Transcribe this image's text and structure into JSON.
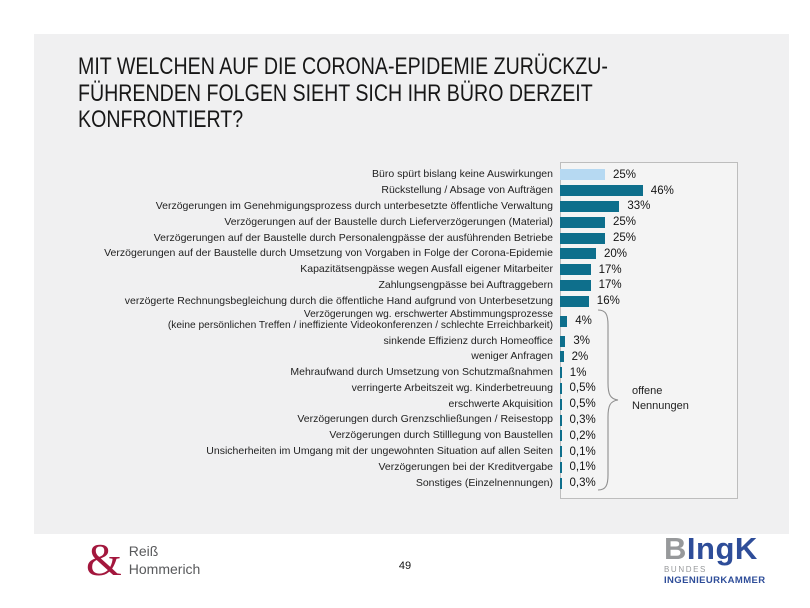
{
  "slide": {
    "title_lines": [
      "MIT WELCHEN AUF DIE CORONA-EPIDEMIE ZURÜCKZU-",
      "FÜHRENDEN FOLGEN SIEHT SICH IHR BÜRO DERZEIT",
      "KONFRONTIERT?"
    ],
    "page_number": "49"
  },
  "chart_data": {
    "type": "bar",
    "orientation": "horizontal",
    "title": "Mit welchen auf die Corona-Epidemie zurückzuführenden Folgen sieht sich Ihr Büro derzeit konfrontiert?",
    "xlabel": "",
    "ylabel": "",
    "xlim": [
      0,
      100
    ],
    "unit": "%",
    "grid": false,
    "legend": false,
    "highlight_index": 0,
    "categories": [
      "Büro spürt bislang keine Auswirkungen",
      "Rückstellung / Absage von Aufträgen",
      "Verzögerungen im Genehmigungsprozess durch unterbesetzte öffentliche Verwaltung",
      "Verzögerungen auf der Baustelle durch Lieferverzögerungen (Material)",
      "Verzögerungen auf der Baustelle durch Personalengpässe der ausführenden Betriebe",
      "Verzögerungen auf der Baustelle durch Umsetzung von Vorgaben in Folge der Corona-Epidemie",
      "Kapazitätsengpässe wegen Ausfall eigener Mitarbeiter",
      "Zahlungsengpässe bei Auftraggebern",
      "verzögerte Rechnungsbegleichung durch die öffentliche Hand aufgrund von Unterbesetzung",
      "Verzögerungen wg. erschwerter Abstimmungsprozesse\n(keine persönlichen Treffen / ineffiziente Videokonferenzen / schlechte Erreichbarkeit)",
      "sinkende Effizienz durch Homeoffice",
      "weniger Anfragen",
      "Mehraufwand durch Umsetzung von Schutzmaßnahmen",
      "verringerte Arbeitszeit wg. Kinderbetreuung",
      "erschwerte Akquisition",
      "Verzögerungen durch Grenzschließungen / Reisestopp",
      "Verzögerungen durch Stilllegung von Baustellen",
      "Unsicherheiten im Umgang mit der ungewohnten Situation auf allen Seiten",
      "Verzögerungen bei der Kreditvergabe",
      "Sonstiges (Einzelnennungen)"
    ],
    "values": [
      25,
      46,
      33,
      25,
      25,
      20,
      17,
      17,
      16,
      4,
      3,
      2,
      1,
      0.5,
      0.5,
      0.3,
      0.2,
      0.1,
      0.1,
      0.3
    ],
    "value_labels": [
      "25%",
      "46%",
      "33%",
      "25%",
      "25%",
      "20%",
      "17%",
      "17%",
      "16%",
      "4%",
      "3%",
      "2%",
      "1%",
      "0,5%",
      "0,5%",
      "0,3%",
      "0,2%",
      "0,1%",
      "0,1%",
      "0,3%"
    ],
    "colors": {
      "bar_default": "#0e6f8c",
      "bar_highlight_first": "#b6d9f2"
    },
    "annotation": {
      "label": "offene Nennungen",
      "rows_start_index": 9,
      "rows_end_index": 19
    }
  },
  "footer": {
    "left_logo": {
      "ampersand": "&",
      "line1": "Reiß",
      "line2": "Hommerich",
      "accent_color": "#a3173d",
      "text_color": "#58595b"
    },
    "right_logo": {
      "prefix": "B",
      "suffix": "IngK",
      "line2": "BUNDES",
      "line3": "INGENIEURKAMMER",
      "gray": "#97999b",
      "blue": "#2e4d99"
    }
  }
}
